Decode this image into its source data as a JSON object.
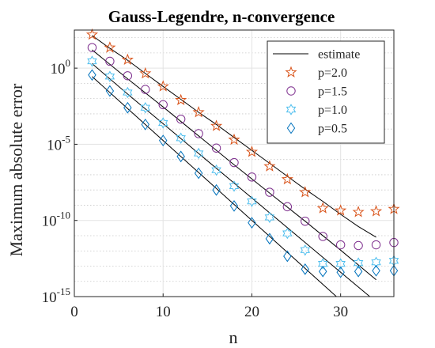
{
  "chart_data": {
    "type": "scatter",
    "title": "Gauss-Legendre, n-convergence",
    "xlabel": "n",
    "ylabel": "Maximum absolute error",
    "xlim": [
      0,
      36
    ],
    "ylim_log10": [
      -15,
      2.5
    ],
    "yscale": "log",
    "grid": true,
    "minor_grid": true,
    "legend_position": "top-right",
    "x_ticks": [
      {
        "value": 0,
        "label": "0"
      },
      {
        "value": 10,
        "label": "10"
      },
      {
        "value": 20,
        "label": "20"
      },
      {
        "value": 30,
        "label": "30"
      }
    ],
    "y_ticks": [
      {
        "exp": 0,
        "base": "10",
        "power": "0"
      },
      {
        "exp": -5,
        "base": "10",
        "power": "-5"
      },
      {
        "exp": -10,
        "base": "10",
        "power": "-10"
      },
      {
        "exp": -15,
        "base": "10",
        "power": "-15"
      }
    ],
    "x": [
      2,
      4,
      6,
      8,
      10,
      12,
      14,
      16,
      18,
      20,
      22,
      24,
      26,
      28,
      30,
      32,
      34,
      36
    ],
    "estimate": {
      "name": "estimate",
      "color": "#000000",
      "lines": [
        {
          "x": [
            2,
            4,
            6,
            8,
            10,
            12,
            14,
            16,
            18,
            20,
            22,
            24,
            26,
            28,
            30,
            32,
            34
          ],
          "log10_y": [
            2.14,
            1.3,
            0.52,
            -0.35,
            -1.2,
            -2.05,
            -2.9,
            -3.7,
            -4.55,
            -5.4,
            -6.25,
            -7.1,
            -7.95,
            -8.75,
            -9.6,
            -10.4,
            -11.1
          ]
        },
        {
          "x": [
            2,
            6,
            10,
            14,
            18,
            22,
            26,
            30,
            34
          ],
          "log10_y": [
            1.2,
            -0.7,
            -2.55,
            -4.45,
            -6.35,
            -8.2,
            -10.05,
            -11.95,
            -13.9
          ]
        },
        {
          "x": [
            2,
            6,
            10,
            14,
            18,
            22,
            26,
            30,
            34
          ],
          "log10_y": [
            0.3,
            -1.7,
            -3.65,
            -5.6,
            -7.55,
            -9.5,
            -11.45,
            -13.4,
            -15.35
          ]
        },
        {
          "x": [
            2,
            6,
            10,
            14,
            18,
            22,
            26,
            30,
            34
          ],
          "log10_y": [
            -0.55,
            -2.65,
            -4.75,
            -6.85,
            -8.95,
            -11.05,
            -13.15,
            -15.25,
            -17.35
          ]
        }
      ]
    },
    "series": [
      {
        "name": "p=2.0",
        "marker": "star",
        "color": "#d95319",
        "log10_y": [
          2.2,
          1.35,
          0.55,
          -0.35,
          -1.2,
          -2.1,
          -2.9,
          -3.8,
          -4.7,
          -5.5,
          -6.45,
          -7.3,
          -8.15,
          -9.2,
          -9.35,
          -9.45,
          -9.4,
          -9.25
        ]
      },
      {
        "name": "p=1.5",
        "marker": "circle",
        "color": "#7e2f8e",
        "log10_y": [
          1.35,
          0.45,
          -0.5,
          -1.4,
          -2.4,
          -3.35,
          -4.3,
          -5.25,
          -6.2,
          -7.15,
          -8.15,
          -9.1,
          -10.05,
          -11.05,
          -11.6,
          -11.65,
          -11.6,
          -11.45
        ]
      },
      {
        "name": "p=1.0",
        "marker": "hexagram",
        "color": "#4dbeee",
        "log10_y": [
          0.45,
          -0.55,
          -1.6,
          -2.6,
          -3.6,
          -4.6,
          -5.6,
          -6.7,
          -7.75,
          -8.75,
          -9.8,
          -10.85,
          -11.95,
          -12.85,
          -12.85,
          -12.8,
          -12.75,
          -12.65
        ]
      },
      {
        "name": "p=0.5",
        "marker": "diamond",
        "color": "#0072bd",
        "log10_y": [
          -0.45,
          -1.5,
          -2.6,
          -3.7,
          -4.75,
          -5.8,
          -6.9,
          -8.0,
          -9.05,
          -10.15,
          -11.2,
          -12.35,
          -13.2,
          -13.35,
          -13.4,
          -13.35,
          -13.3,
          -13.3
        ]
      }
    ]
  }
}
